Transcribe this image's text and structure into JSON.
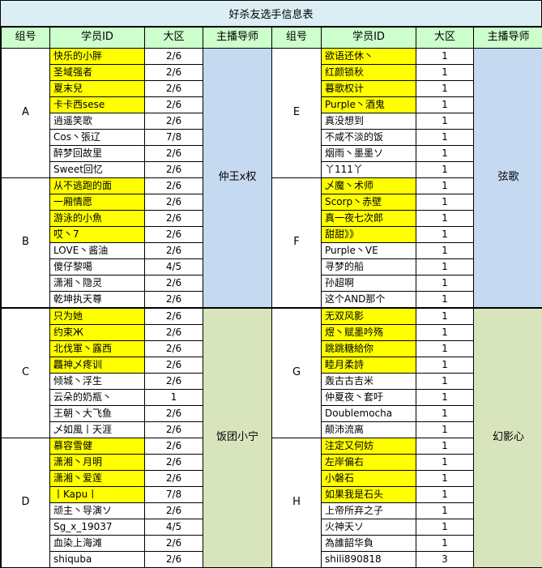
{
  "title": "好杀友选手信息表",
  "columns": [
    "组号",
    "学员ID",
    "大区",
    "主播导师"
  ],
  "colors": {
    "title_bg": "#daeef3",
    "header_bg": "#ccffcc",
    "highlight": "#ffff00",
    "mentor_blue": "#c5d9f1",
    "mentor_green": "#d8e4bc",
    "border": "#000000"
  },
  "mentors": [
    {
      "label": "仲王x权",
      "color": "blue"
    },
    {
      "label": "饭团小宁",
      "color": "green"
    },
    {
      "label": "弦歌",
      "color": "blue"
    },
    {
      "label": "幻影心",
      "color": "green"
    }
  ],
  "groups": [
    {
      "name": "A",
      "rows": [
        {
          "id": "快乐的小胖",
          "region": "2/6",
          "highlight": true
        },
        {
          "id": "圣域强者",
          "region": "2/6",
          "highlight": true
        },
        {
          "id": "夏末兒",
          "region": "2/6",
          "highlight": true
        },
        {
          "id": "卡卡西sese",
          "region": "2/6",
          "highlight": true
        },
        {
          "id": "逍遥笑歌",
          "region": "2/6",
          "highlight": false
        },
        {
          "id": "Cos丶張辽",
          "region": "7/8",
          "highlight": false
        },
        {
          "id": "醉梦回故里",
          "region": "2/6",
          "highlight": false
        },
        {
          "id": "Sweet回忆",
          "region": "2/6",
          "highlight": false
        }
      ]
    },
    {
      "name": "B",
      "rows": [
        {
          "id": "从不逃跑的面",
          "region": "2/6",
          "highlight": true
        },
        {
          "id": "一厢情愿",
          "region": "2/6",
          "highlight": true
        },
        {
          "id": "游泳的小魚",
          "region": "2/6",
          "highlight": true
        },
        {
          "id": "哎丶7",
          "region": "2/6",
          "highlight": true
        },
        {
          "id": "LOVE丶酱油",
          "region": "2/6",
          "highlight": false
        },
        {
          "id": "傻仔黎噶",
          "region": "4/5",
          "highlight": false
        },
        {
          "id": "潇湘丶隐灵",
          "region": "2/6",
          "highlight": false
        },
        {
          "id": "乾坤执天尊",
          "region": "2/6",
          "highlight": false
        }
      ]
    },
    {
      "name": "C",
      "rows": [
        {
          "id": "只为她",
          "region": "2/6",
          "highlight": true
        },
        {
          "id": "约束Ж",
          "region": "2/6",
          "highlight": true
        },
        {
          "id": "北伐軍丶露西",
          "region": "2/6",
          "highlight": true
        },
        {
          "id": "龘神乄疼训",
          "region": "2/6",
          "highlight": true
        },
        {
          "id": "倾城丶浮生",
          "region": "2/6",
          "highlight": false
        },
        {
          "id": "云朵的奶瓶丶",
          "region": "1",
          "highlight": false
        },
        {
          "id": "王朝丶大飞鱼",
          "region": "2/6",
          "highlight": false
        },
        {
          "id": "乄如風丨天涯",
          "region": "2/6",
          "highlight": false
        }
      ]
    },
    {
      "name": "D",
      "rows": [
        {
          "id": "慕容雪健",
          "region": "2/6",
          "highlight": true
        },
        {
          "id": "潇湘丶月明",
          "region": "2/6",
          "highlight": true
        },
        {
          "id": "潇湘丶爱莲",
          "region": "2/6",
          "highlight": true
        },
        {
          "id": "丨Kapu丨",
          "region": "7/8",
          "highlight": true
        },
        {
          "id": "顽主丶导演ソ",
          "region": "2/6",
          "highlight": false
        },
        {
          "id": "Sg_x_19037",
          "region": "4/5",
          "highlight": false
        },
        {
          "id": "血染上海滩",
          "region": "2/6",
          "highlight": false
        },
        {
          "id": "shiquba",
          "region": "2/6",
          "highlight": false
        }
      ]
    },
    {
      "name": "E",
      "rows": [
        {
          "id": "欲语还休丶",
          "region": "1",
          "highlight": true
        },
        {
          "id": "红颜锁秋",
          "region": "1",
          "highlight": true
        },
        {
          "id": "暮歌权计",
          "region": "1",
          "highlight": true
        },
        {
          "id": "Purple丶酒鬼",
          "region": "1",
          "highlight": true
        },
        {
          "id": "真没想到",
          "region": "1",
          "highlight": false
        },
        {
          "id": "不咸不淡的饭",
          "region": "1",
          "highlight": false
        },
        {
          "id": "烟雨丶墨墨ソ",
          "region": "1",
          "highlight": false
        },
        {
          "id": "丫111丫",
          "region": "1",
          "highlight": false
        }
      ]
    },
    {
      "name": "F",
      "rows": [
        {
          "id": "乄魔丶术师",
          "region": "1",
          "highlight": true
        },
        {
          "id": "Scorp丶赤壁",
          "region": "1",
          "highlight": true
        },
        {
          "id": "真一夜七次郎",
          "region": "1",
          "highlight": true
        },
        {
          "id": "甜甜》》",
          "region": "1",
          "highlight": true
        },
        {
          "id": "Purple丶VE",
          "region": "1",
          "highlight": false
        },
        {
          "id": "寻梦的船",
          "region": "1",
          "highlight": false
        },
        {
          "id": "孙超啊",
          "region": "1",
          "highlight": false
        },
        {
          "id": "这个AND那个",
          "region": "1",
          "highlight": false
        }
      ]
    },
    {
      "name": "G",
      "rows": [
        {
          "id": "无双风影",
          "region": "1",
          "highlight": true
        },
        {
          "id": "煜丶赋墨吟殇",
          "region": "1",
          "highlight": true
        },
        {
          "id": "跳跳糖給你",
          "region": "1",
          "highlight": true
        },
        {
          "id": "睦月柔詩",
          "region": "1",
          "highlight": true
        },
        {
          "id": "轰古古吉米",
          "region": "1",
          "highlight": false
        },
        {
          "id": "仲夏夜丶套吁",
          "region": "1",
          "highlight": false
        },
        {
          "id": "Doublemocha",
          "region": "1",
          "highlight": false
        },
        {
          "id": "颠沛流离",
          "region": "1",
          "highlight": false
        }
      ]
    },
    {
      "name": "H",
      "rows": [
        {
          "id": "注定又何妨",
          "region": "1",
          "highlight": true
        },
        {
          "id": "左岸偏右",
          "region": "1",
          "highlight": true
        },
        {
          "id": "小磐石",
          "region": "1",
          "highlight": true
        },
        {
          "id": "如果我是石头",
          "region": "1",
          "highlight": true
        },
        {
          "id": "上帝所弃之子",
          "region": "1",
          "highlight": false
        },
        {
          "id": "火神天ソ",
          "region": "1",
          "highlight": false
        },
        {
          "id": "為誰韶华負",
          "region": "1",
          "highlight": false
        },
        {
          "id": "shili890818",
          "region": "3",
          "highlight": false
        }
      ]
    }
  ]
}
